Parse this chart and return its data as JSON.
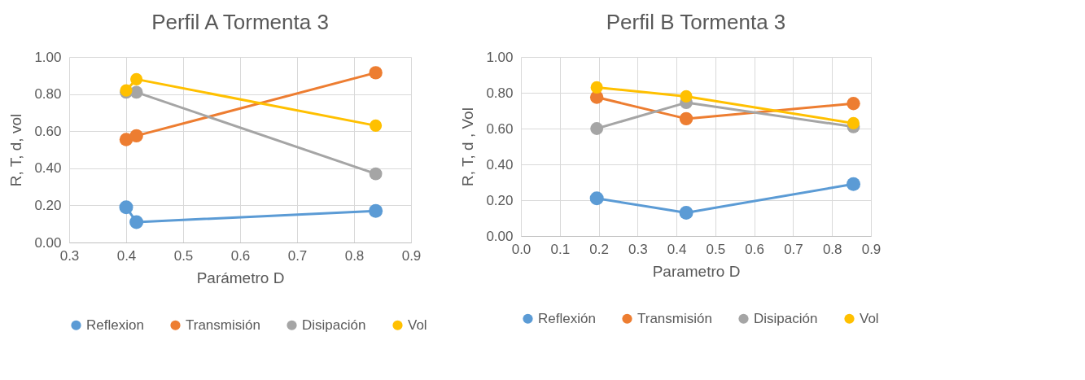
{
  "chart_data": [
    {
      "type": "line",
      "title": "Perfil A Tormenta 3",
      "xlabel": "Parámetro D",
      "ylabel": "R, T, d, vol",
      "x": [
        0.4,
        0.418,
        0.838
      ],
      "series": [
        {
          "name": "Reflexion",
          "color": "#5b9bd5",
          "values": [
            0.19,
            0.11,
            0.17
          ]
        },
        {
          "name": "Transmisión",
          "color": "#ed7d31",
          "values": [
            0.555,
            0.575,
            0.915
          ]
        },
        {
          "name": "Disipación",
          "color": "#a5a5a5",
          "values": [
            0.81,
            0.81,
            0.37
          ]
        },
        {
          "name": "Vol",
          "color": "#ffc000",
          "values": [
            0.82,
            0.88,
            0.63
          ]
        }
      ],
      "xlim": [
        0.3,
        0.9
      ],
      "xticks": [
        0.3,
        0.4,
        0.5,
        0.6,
        0.7,
        0.8,
        0.9
      ],
      "ylim": [
        0,
        1
      ],
      "yticks": [
        {
          "value": 0,
          "label": "0.00"
        },
        {
          "value": 0.2,
          "label": "0.20"
        },
        {
          "value": 0.4,
          "label": "0.40"
        },
        {
          "value": 0.6,
          "label": "0.60"
        },
        {
          "value": 0.8,
          "label": "0.80"
        },
        {
          "value": 1,
          "label": "1.00"
        }
      ],
      "grid": true,
      "legend": "bottom",
      "marker": "circle",
      "line_style": "solid"
    },
    {
      "type": "line",
      "title": "Perfil B Tormenta 3",
      "xlabel": "Parametro D",
      "ylabel": "R, T, d , Vol",
      "x": [
        0.195,
        0.425,
        0.855
      ],
      "series": [
        {
          "name": "Reflexión",
          "color": "#5b9bd5",
          "values": [
            0.21,
            0.13,
            0.29
          ]
        },
        {
          "name": "Transmisión",
          "color": "#ed7d31",
          "values": [
            0.775,
            0.655,
            0.74
          ]
        },
        {
          "name": "Disipación",
          "color": "#a5a5a5",
          "values": [
            0.6,
            0.745,
            0.61
          ]
        },
        {
          "name": "Vol",
          "color": "#ffc000",
          "values": [
            0.83,
            0.78,
            0.63
          ]
        }
      ],
      "xlim": [
        0,
        0.9
      ],
      "xticks": [
        {
          "value": 0,
          "label": "0.0"
        },
        0.1,
        0.2,
        0.3,
        0.4,
        0.5,
        0.6,
        0.7,
        0.8,
        0.9
      ],
      "ylim": [
        0,
        1
      ],
      "yticks": [
        {
          "value": 0,
          "label": "0.00"
        },
        {
          "value": 0.2,
          "label": "0.20"
        },
        {
          "value": 0.4,
          "label": "0.40"
        },
        {
          "value": 0.6,
          "label": "0.60"
        },
        {
          "value": 0.8,
          "label": "0.80"
        },
        {
          "value": 1,
          "label": "1.00"
        }
      ],
      "grid": true,
      "legend": "bottom",
      "marker": "circle",
      "line_style": "solid"
    }
  ]
}
